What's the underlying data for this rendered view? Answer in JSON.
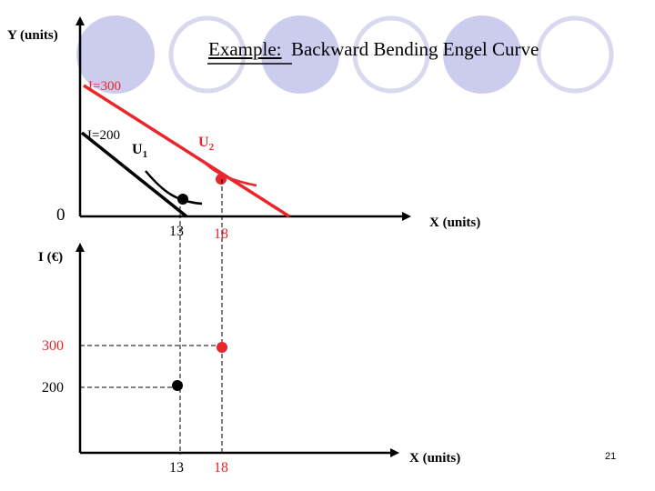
{
  "title": {
    "prefix": "Example:",
    "main": "Backward Bending Engel Curve"
  },
  "top_diagram": {
    "y_axis_label": "Y (units)",
    "x_axis_label": "X (units)",
    "origin_label": "0",
    "budget_lines": [
      {
        "label": "I=300",
        "income": 300,
        "color": "#e8262b"
      },
      {
        "label": "I=200",
        "income": 200,
        "color": "#000000"
      }
    ],
    "indifference_curves": [
      {
        "label": "U",
        "subscript": "1",
        "color": "#000000"
      },
      {
        "label": "U",
        "subscript": "2",
        "color": "#e8262b"
      }
    ],
    "x_ticks": [
      {
        "label": "13",
        "value": 13,
        "color": "#000000"
      },
      {
        "label": "18",
        "value": 18,
        "color": "#e8262b"
      }
    ]
  },
  "bottom_diagram": {
    "y_axis_label": "I (€)",
    "x_axis_label": "X (units)",
    "y_ticks": [
      {
        "label": "300",
        "value": 300,
        "color": "#e8262b"
      },
      {
        "label": "200",
        "value": 200,
        "color": "#000000"
      }
    ],
    "x_ticks": [
      {
        "label": "13",
        "value": 13,
        "color": "#000000"
      },
      {
        "label": "18",
        "value": 18,
        "color": "#e8262b"
      }
    ],
    "points": [
      {
        "x": 13,
        "income": 200,
        "color": "#000000"
      },
      {
        "x": 18,
        "income": 300,
        "color": "#e8262b"
      }
    ]
  },
  "page_number": "21",
  "colors": {
    "accent_red": "#e8262b",
    "circle_fill": "#ccccee",
    "circle_outline": "#d8d8ee"
  }
}
